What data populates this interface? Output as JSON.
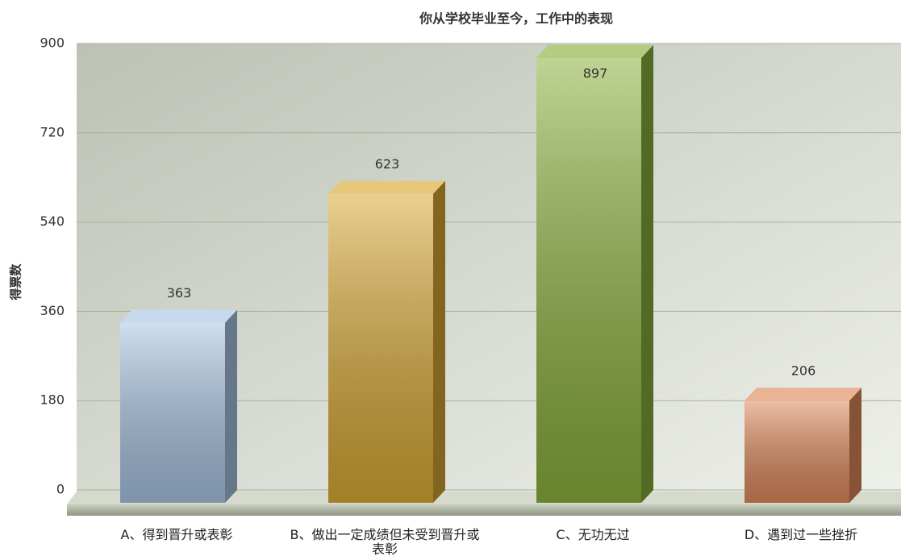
{
  "chart_data": {
    "type": "bar",
    "title": "你从学校毕业至今，工作中的表现",
    "y_label": "得票数",
    "categories": [
      "A、得到晋升或表彰",
      "B、做出一定成绩但未受到晋升或表彰",
      "C、无功无过",
      "D、遇到过一些挫折"
    ],
    "values": [
      363,
      623,
      897,
      206
    ],
    "colors": [
      "#a9c6e4",
      "#d9aa35",
      "#8bb13c",
      "#e08a5c"
    ],
    "ylim": [
      0,
      900
    ],
    "yticks": [
      0,
      180,
      360,
      540,
      720,
      900
    ],
    "grid": true
  }
}
